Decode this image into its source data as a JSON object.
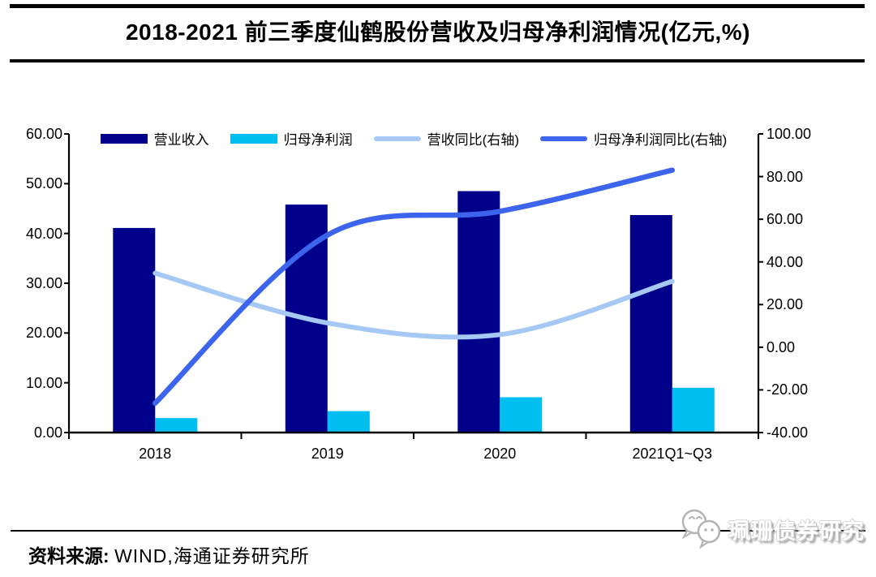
{
  "page": {
    "title": "2018-2021 前三季度仙鹤股份营收及归母净利润情况(亿元,%)"
  },
  "footer": {
    "source_label": "资料来源:",
    "source_text": "WIND,海通证券研究所"
  },
  "watermark": {
    "text": "珮珊债券研究",
    "icon": "wechat-chat-bubbles-icon"
  },
  "colors": {
    "revenue_bar": "#00008B",
    "net_profit_bar": "#00BFF0",
    "revenue_yoy_line": "#A5C8F5",
    "net_profit_yoy_line": "#3C64EC",
    "axis": "#000000",
    "background": "#FFFFFF"
  },
  "chart_data": {
    "type": "bar+line combo (dual axis)",
    "title": "2018-2021 前三季度仙鹤股份营收及归母净利润情况(亿元,%)",
    "categories": [
      "2018",
      "2019",
      "2020",
      "2021Q1~Q3"
    ],
    "series": [
      {
        "name": "营业收入",
        "type": "bar",
        "axis": "left",
        "color": "#00008B",
        "values": [
          41.1,
          45.8,
          48.5,
          43.7
        ]
      },
      {
        "name": "归母净利润",
        "type": "bar",
        "axis": "left",
        "color": "#00BFF0",
        "values": [
          2.9,
          4.3,
          7.1,
          9.0
        ]
      },
      {
        "name": "营收同比(右轴)",
        "type": "line",
        "axis": "right",
        "color": "#A5C8F5",
        "values": [
          34.7,
          11.4,
          5.9,
          30.9
        ]
      },
      {
        "name": "归母净利润同比(右轴)",
        "type": "line",
        "axis": "right",
        "color": "#3C64EC",
        "values": [
          -26.2,
          52.6,
          63.7,
          83.0
        ]
      }
    ],
    "left_axis": {
      "min": 0,
      "max": 60,
      "step": 10,
      "tick_labels": [
        "0.00",
        "10.00",
        "20.00",
        "30.00",
        "40.00",
        "50.00",
        "60.00"
      ]
    },
    "right_axis": {
      "min": -40,
      "max": 100,
      "step": 20,
      "tick_labels": [
        "-40.00",
        "-20.00",
        "0.00",
        "20.00",
        "40.00",
        "60.00",
        "80.00",
        "100.00"
      ]
    },
    "xlabel": "",
    "ylabel": "",
    "grid": false,
    "legend_position": "top"
  }
}
